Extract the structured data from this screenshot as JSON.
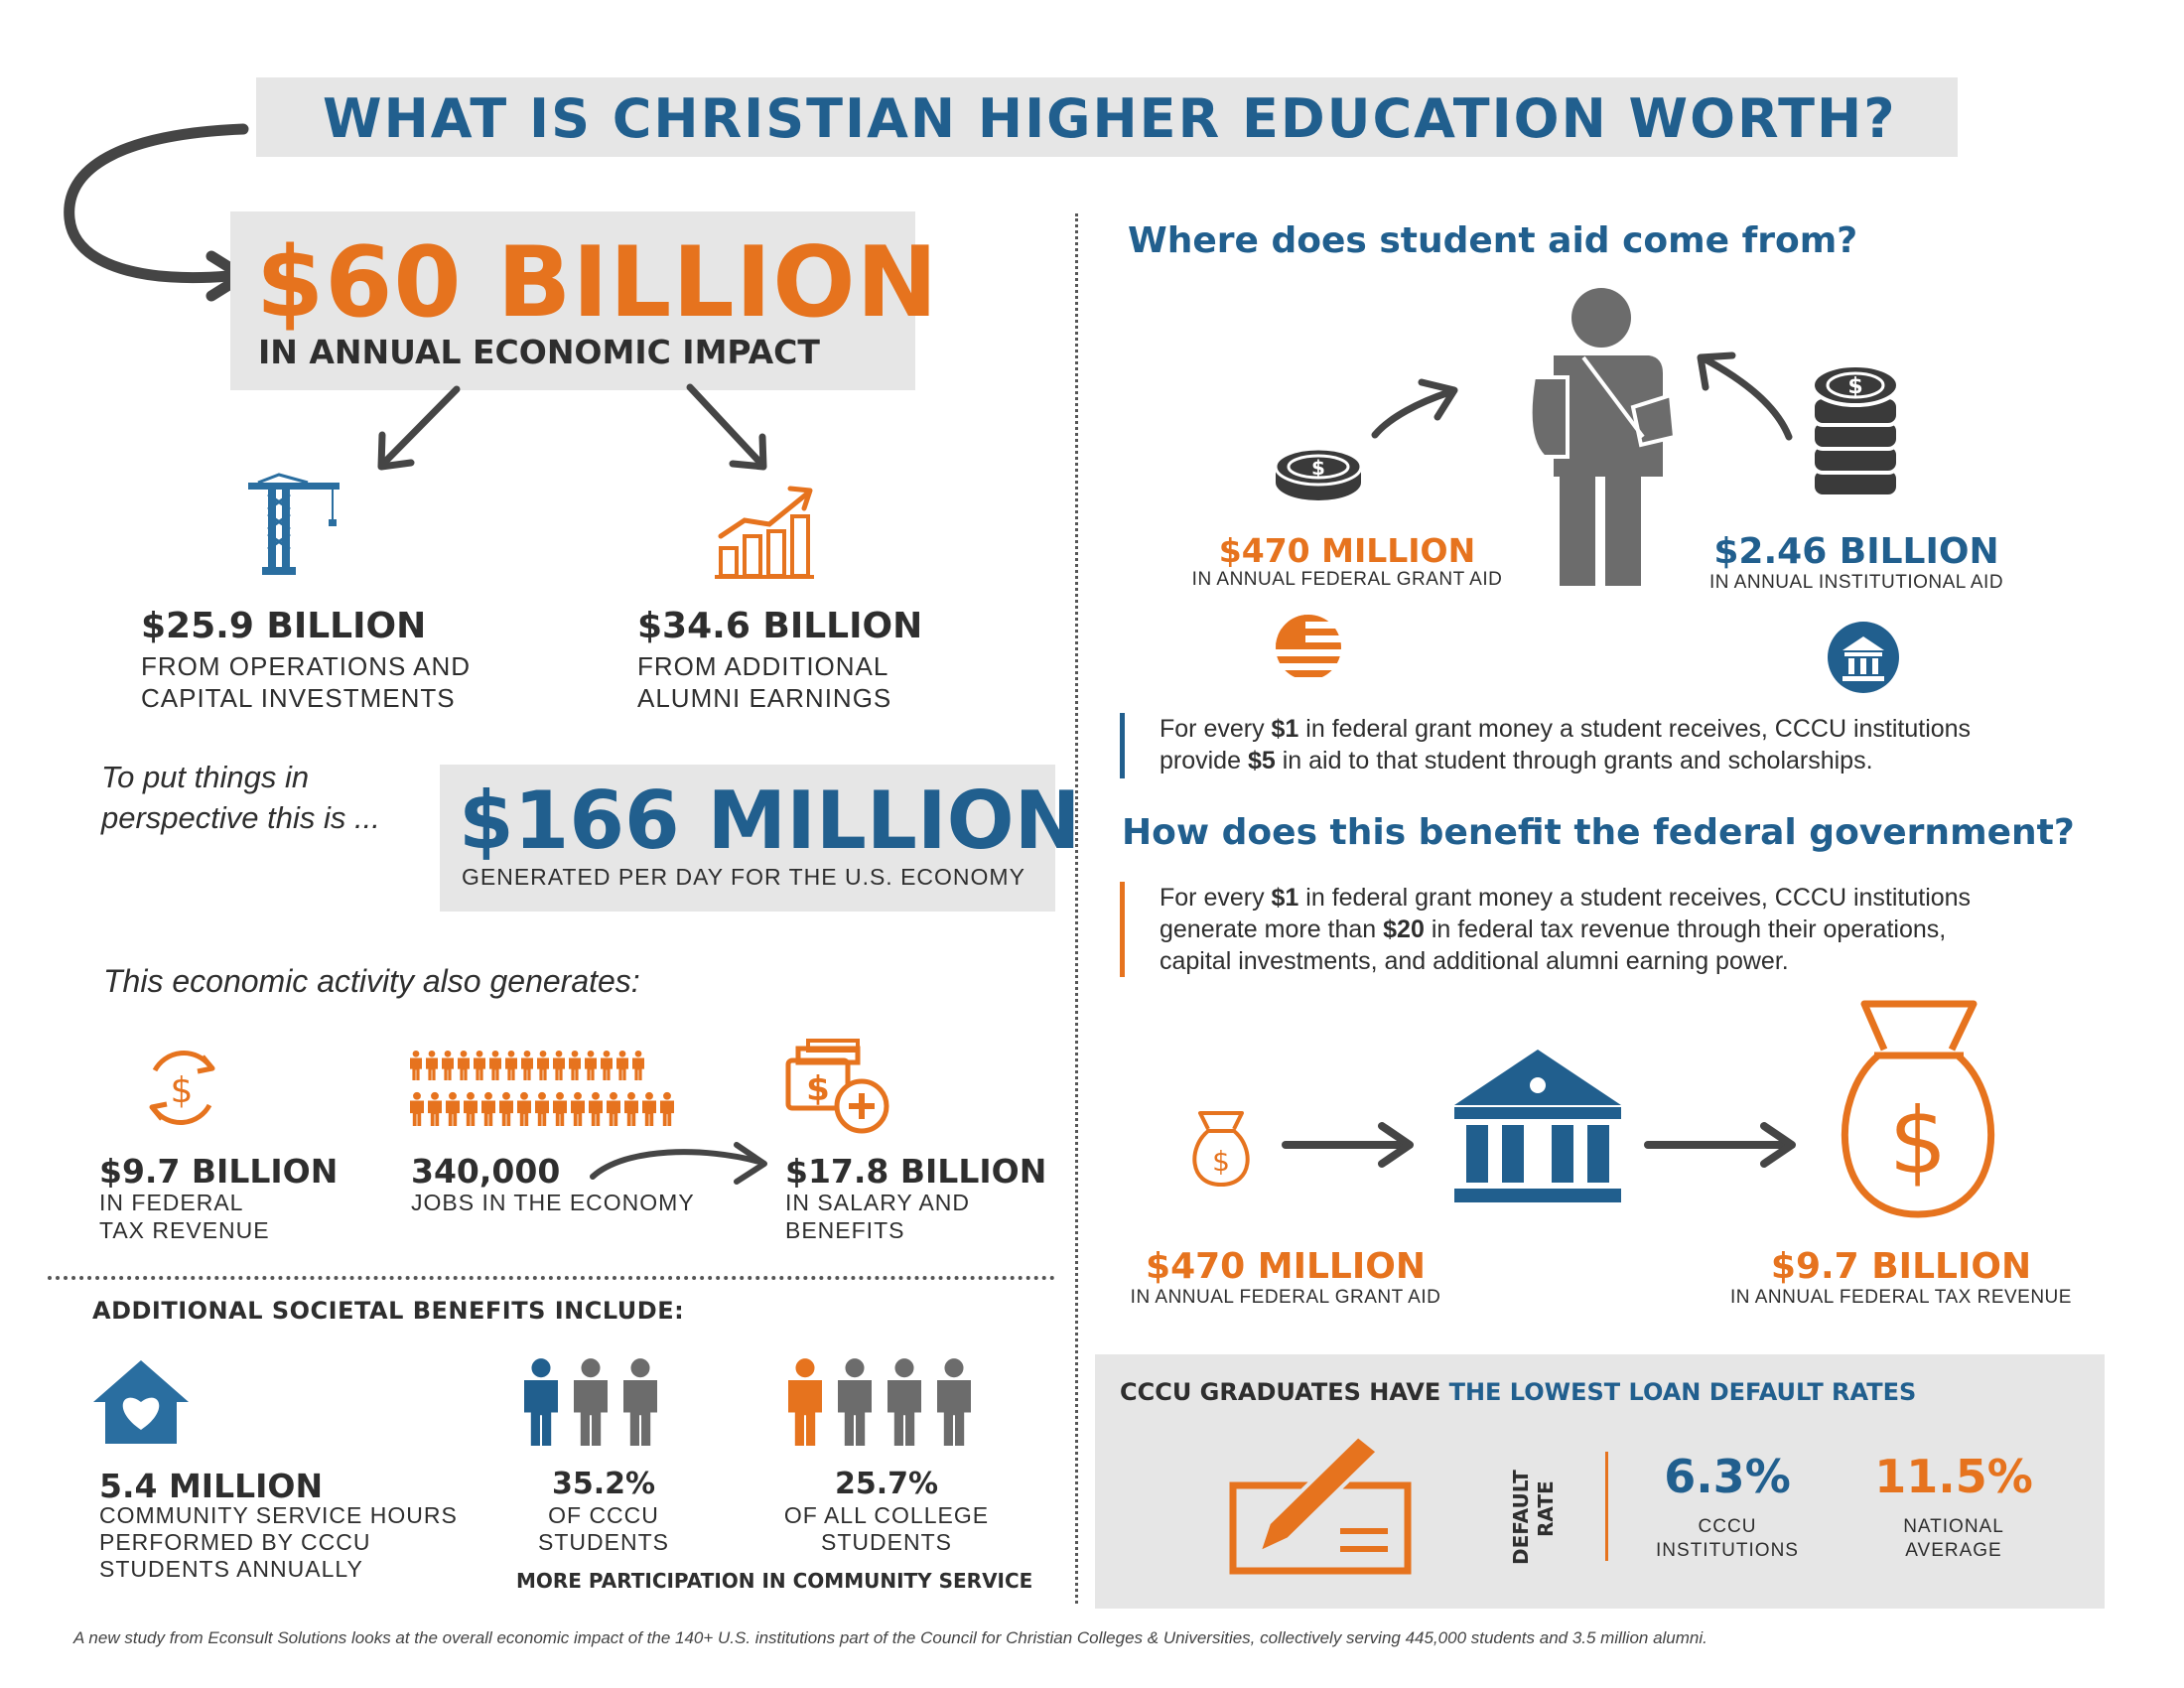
{
  "header": {
    "title": "WHAT IS CHRISTIAN HIGHER EDUCATION WORTH?"
  },
  "impact": {
    "value": "$60 BILLION",
    "label": "IN ANNUAL ECONOMIC IMPACT"
  },
  "split": {
    "left": {
      "value": "$25.9 BILLION",
      "line1": "FROM OPERATIONS AND",
      "line2": "CAPITAL INVESTMENTS",
      "icon": "crane-icon"
    },
    "right": {
      "value": "$34.6 BILLION",
      "line1": "FROM ADDITIONAL",
      "line2": "ALUMNI EARNINGS",
      "icon": "growth-chart-icon"
    }
  },
  "perspective": {
    "lead1": "To put things in",
    "lead2": "perspective this is ...",
    "value": "$166 MILLION",
    "label": "GENERATED PER DAY FOR THE U.S. ECONOMY"
  },
  "generates": {
    "heading": "This economic activity also generates:",
    "tax": {
      "value": "$9.7 BILLION",
      "line1": "IN FEDERAL",
      "line2": "TAX REVENUE"
    },
    "jobs": {
      "value": "340,000",
      "line1": "JOBS IN THE ECONOMY"
    },
    "salary": {
      "value": "$17.8 BILLION",
      "line1": "IN SALARY AND",
      "line2": "BENEFITS"
    }
  },
  "societal": {
    "heading": "ADDITIONAL SOCIETAL BENEFITS INCLUDE:",
    "hours": {
      "value": "5.4 MILLION",
      "line1": "COMMUNITY SERVICE HOURS",
      "line2": "PERFORMED BY CCCU",
      "line3": "STUDENTS ANNUALLY"
    },
    "cccu": {
      "value": "35.2%",
      "line1": "OF CCCU",
      "line2": "STUDENTS"
    },
    "all": {
      "value": "25.7%",
      "line1": "OF ALL COLLEGE",
      "line2": "STUDENTS"
    },
    "caption": "MORE PARTICIPATION IN COMMUNITY SERVICE"
  },
  "aid": {
    "heading": "Where does student aid come from?",
    "federal": {
      "value": "$470 MILLION",
      "label": "IN ANNUAL FEDERAL GRANT AID"
    },
    "institutional": {
      "value": "$2.46 BILLION",
      "label": "IN ANNUAL INSTITUTIONAL AID"
    },
    "note": {
      "p1": "For every ",
      "b1": "$1",
      "p2": " in federal grant money a student receives, CCCU institutions",
      "p3": "provide ",
      "b2": "$5",
      "p4": " in aid to that student through grants and scholarships."
    }
  },
  "benefit": {
    "heading": "How does this benefit the federal government?",
    "note": {
      "p1": "For every ",
      "b1": "$1",
      "p2": " in federal grant money a student receives, CCCU institutions",
      "p3": "generate more than ",
      "b2": "$20",
      "p4": " in federal tax revenue through their operations,",
      "p5": "capital investments, and additional alumni earning power."
    },
    "grant": {
      "value": "$470 MILLION",
      "label": "IN ANNUAL FEDERAL GRANT AID"
    },
    "revenue": {
      "value": "$9.7 BILLION",
      "label": "IN ANNUAL FEDERAL TAX REVENUE"
    }
  },
  "loans": {
    "heading_a": "CCCU GRADUATES HAVE ",
    "heading_b": "THE LOWEST LOAN DEFAULT RATES",
    "axis1": "DEFAULT",
    "axis2": "RATE",
    "cccu": {
      "value": "6.3%",
      "line1": "CCCU",
      "line2": "INSTITUTIONS"
    },
    "national": {
      "value": "11.5%",
      "line1": "NATIONAL",
      "line2": "AVERAGE"
    }
  },
  "footer": {
    "text": "A new study from Econsult Solutions looks at the overall economic impact of the 140+ U.S. institutions part of the Council for Christian Colleges & Universities, collectively serving 445,000 students and 3.5 million alumni."
  },
  "colors": {
    "orange": "#e6731e",
    "blue": "#215f8e",
    "dark": "#2e2e2e",
    "grey": "#6c6c6c",
    "panel": "#e6e6e6"
  }
}
